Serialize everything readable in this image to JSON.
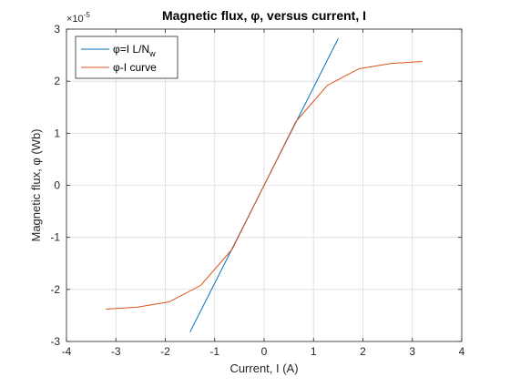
{
  "chart_data": {
    "type": "line",
    "title": "Magnetic flux, φ, versus current, I",
    "xlabel": "Current, I (A)",
    "ylabel": "Magnetic flux, φ (Wb)",
    "xlim": [
      -4,
      4
    ],
    "ylim": [
      -3,
      3
    ],
    "y_scale_factor_label": "×10",
    "y_scale_factor_exponent": "-5",
    "x_ticks": [
      -4,
      -3,
      -2,
      -1,
      0,
      1,
      2,
      3,
      4
    ],
    "y_ticks": [
      -3,
      -2,
      -1,
      0,
      1,
      2,
      3
    ],
    "x_tick_labels": [
      "-4",
      "-3",
      "-2",
      "-1",
      "0",
      "1",
      "2",
      "3",
      "4"
    ],
    "y_tick_labels": [
      "-3",
      "-2",
      "-1",
      "0",
      "1",
      "2",
      "3"
    ],
    "grid": true,
    "legend_position": "top-left",
    "series": [
      {
        "name": "φ=I L/N",
        "name_subscript": "w",
        "color": "#0072BD",
        "x": [
          -1.5,
          1.5
        ],
        "y": [
          -2.82,
          2.82
        ]
      },
      {
        "name": "φ-I curve",
        "color": "#D95319",
        "x": [
          -3.2,
          -2.56,
          -1.92,
          -1.28,
          -0.64,
          0,
          0.64,
          1.28,
          1.92,
          2.56,
          3.2
        ],
        "y": [
          -2.38,
          -2.34,
          -2.24,
          -1.92,
          -1.22,
          0,
          1.22,
          1.92,
          2.24,
          2.34,
          2.38
        ]
      }
    ]
  }
}
